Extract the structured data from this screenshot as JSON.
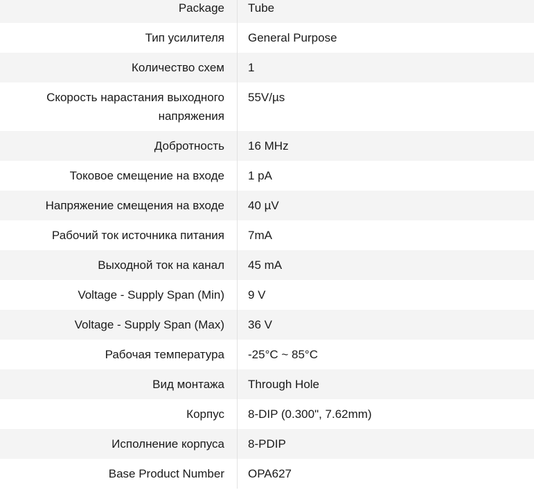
{
  "specs": [
    {
      "label": "Package",
      "value": "Tube"
    },
    {
      "label": "Тип усилителя",
      "value": "General Purpose"
    },
    {
      "label": "Количество схем",
      "value": "1"
    },
    {
      "label": "Скорость нарастания выходного напряжения",
      "value": "55V/µs"
    },
    {
      "label": "Добротность",
      "value": "16 MHz"
    },
    {
      "label": "Токовое смещение на входе",
      "value": "1 pA"
    },
    {
      "label": "Напряжение смещения на входе",
      "value": "40 µV"
    },
    {
      "label": "Рабочий ток источника питания",
      "value": "7mA"
    },
    {
      "label": "Выходной ток на канал",
      "value": "45 mA"
    },
    {
      "label": "Voltage - Supply Span (Min)",
      "value": "9 V"
    },
    {
      "label": "Voltage - Supply Span (Max)",
      "value": "36 V"
    },
    {
      "label": "Рабочая температура",
      "value": "-25°C ~ 85°C"
    },
    {
      "label": "Вид монтажа",
      "value": "Through Hole"
    },
    {
      "label": "Корпус",
      "value": "8-DIP (0.300\", 7.62mm)"
    },
    {
      "label": "Исполнение корпуса",
      "value": "8-PDIP"
    },
    {
      "label": "Base Product Number",
      "value": "OPA627"
    }
  ]
}
